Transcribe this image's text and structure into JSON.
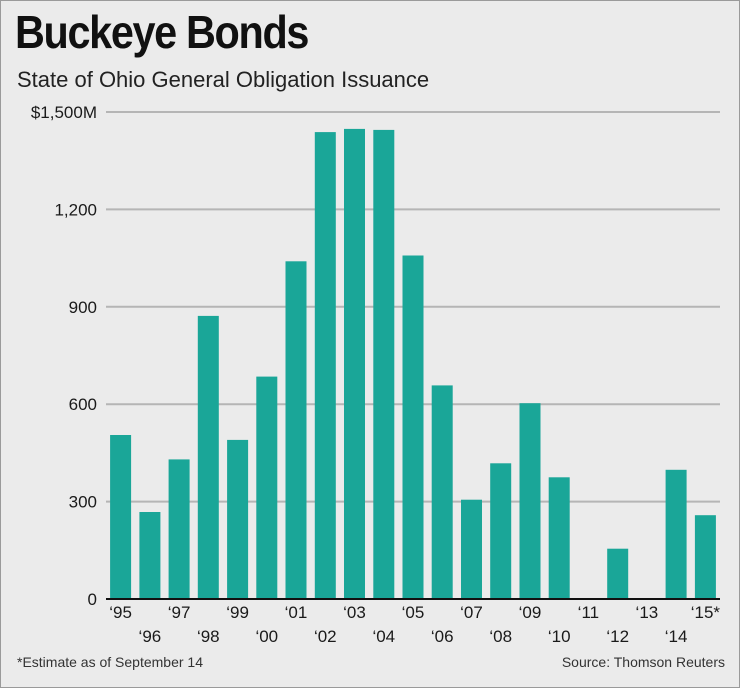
{
  "chart_data": {
    "type": "bar",
    "title": "Buckeye Bonds",
    "subtitle": "State of Ohio General Obligation Issuance",
    "xlabel": "",
    "ylabel": "",
    "categories": [
      "‘95",
      "‘96",
      "‘97",
      "‘98",
      "‘99",
      "‘00",
      "‘01",
      "‘02",
      "‘03",
      "‘04",
      "‘05",
      "‘06",
      "‘07",
      "‘08",
      "‘09",
      "‘10",
      "‘11",
      "‘12",
      "‘13",
      "‘14",
      "‘15*"
    ],
    "values": [
      505,
      268,
      430,
      872,
      490,
      685,
      1040,
      1438,
      1448,
      1445,
      1058,
      658,
      306,
      418,
      603,
      375,
      0,
      155,
      0,
      398,
      258
    ],
    "ylim": [
      0,
      1500
    ],
    "yticks": [
      0,
      300,
      600,
      900,
      1200,
      1500
    ],
    "ytick_labels": [
      "0",
      "300",
      "600",
      "900",
      "1,200",
      "$1,500M"
    ],
    "grid": true,
    "bar_color": "#1aa698",
    "footnote": "*Estimate as of September 14",
    "source": "Source: Thomson Reuters"
  }
}
